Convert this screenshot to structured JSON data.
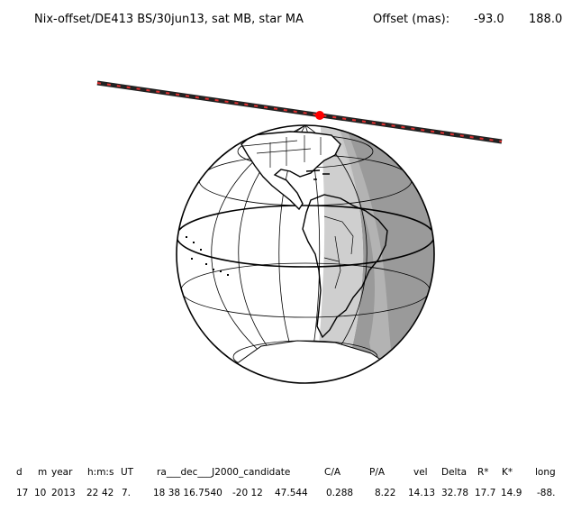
{
  "header": {
    "title": "Nix-offset/DE413 BS/30jun13, sat MB, star MA",
    "offset_label": "Offset (mas):",
    "offset_x": "-93.0",
    "offset_y": "188.0"
  },
  "table": {
    "headers": [
      "d",
      "m",
      "year",
      "h:m:s",
      "UT",
      "ra___dec___J2000_candidate",
      "C/A",
      "P/A",
      "vel",
      "Delta",
      "R*",
      "K*",
      "long"
    ],
    "values": [
      "17",
      "10",
      "2013",
      "22",
      "42",
      "7.",
      "18 38 16.7540",
      "-20 12",
      "47.544",
      "0.288",
      "8.22",
      "14.13",
      "32.78",
      "17.7",
      "14.9",
      "-88."
    ]
  },
  "colors": {
    "track": "#222222",
    "track_dash": "#e03030",
    "closest_point": "#ff0000",
    "penumbra": "#cfcfcf",
    "night": "#9a9a9a"
  }
}
